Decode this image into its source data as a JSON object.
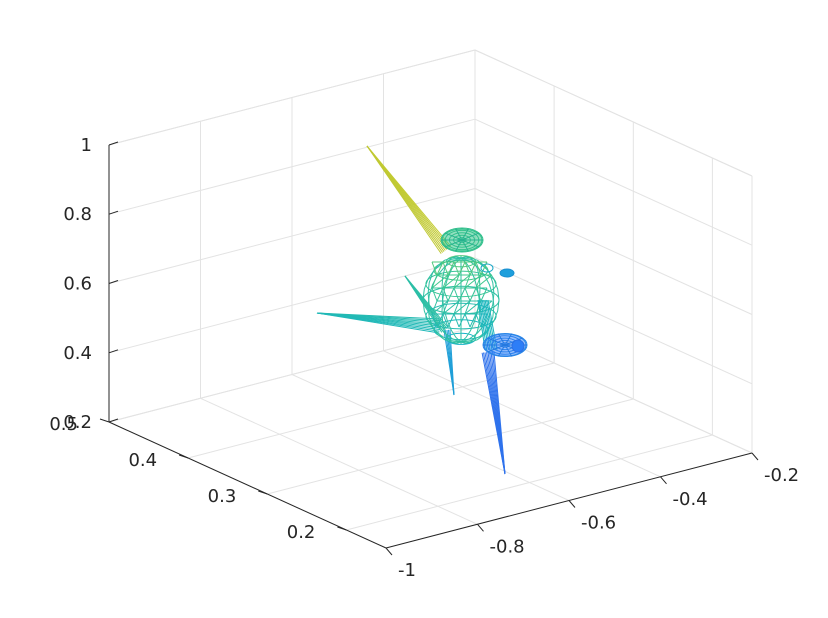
{
  "chart_data": {
    "type": "3d-wireframe",
    "title": "",
    "xlabel": "",
    "ylabel": "",
    "zlabel": "",
    "grid": true,
    "xlim": [
      -1,
      -0.2
    ],
    "ylim": [
      0.15,
      0.5
    ],
    "zlim": [
      0.2,
      1
    ],
    "x_ticks": [
      "-1",
      "-0.8",
      "-0.6",
      "-0.4",
      "-0.2"
    ],
    "x_tick_values": [
      -1,
      -0.8,
      -0.6,
      -0.4,
      -0.2
    ],
    "y_ticks": [
      "0.2",
      "0.3",
      "0.4",
      "0.5"
    ],
    "y_tick_values": [
      0.2,
      0.3,
      0.4,
      0.5
    ],
    "z_ticks": [
      "0.2",
      "0.4",
      "0.6",
      "0.8",
      "1"
    ],
    "z_tick_values": [
      0.2,
      0.4,
      0.6,
      0.8,
      1
    ],
    "colormap": [
      "#3e26a8",
      "#2d7ef7",
      "#17b3c6",
      "#3fc98a",
      "#b9c337",
      "#f9fb0e"
    ],
    "object": "wireframe mesh of a windmill-like shape with three long thin blades around a central hub, colored by height"
  }
}
